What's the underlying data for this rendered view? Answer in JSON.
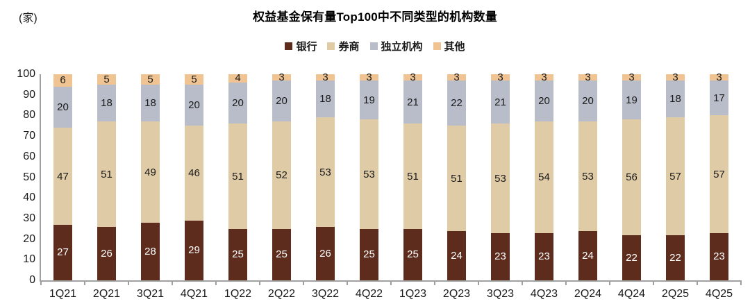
{
  "chart": {
    "unit_label": "(家)",
    "title": "权益基金保有量Top100中不同类型的机构数量",
    "colors": {
      "bank": "#5D2C1D",
      "broker": "#DFCBA6",
      "independent": "#B8BDC9",
      "other": "#F0C392",
      "axis": "#A0A0A0",
      "label_dark": "#1A1A1A",
      "label_light": "#FFFFFF"
    }
  },
  "chart_data": {
    "type": "bar",
    "stacked": true,
    "title": "权益基金保有量Top100中不同类型的机构数量",
    "unit": "(家)",
    "categories": [
      "1Q21",
      "2Q21",
      "3Q21",
      "4Q21",
      "1Q22",
      "2Q22",
      "3Q22",
      "4Q22",
      "1Q23",
      "2Q23",
      "3Q23",
      "4Q23",
      "2Q24",
      "4Q24",
      "2Q25",
      "4Q25"
    ],
    "series": [
      {
        "name": "银行",
        "key": "bank",
        "values": [
          27,
          26,
          28,
          29,
          25,
          25,
          26,
          25,
          25,
          24,
          23,
          23,
          24,
          22,
          22,
          23
        ]
      },
      {
        "name": "券商",
        "key": "broker",
        "values": [
          47,
          51,
          49,
          46,
          51,
          52,
          53,
          53,
          51,
          51,
          53,
          54,
          53,
          56,
          57,
          57
        ]
      },
      {
        "name": "独立机构",
        "key": "independent",
        "values": [
          20,
          18,
          18,
          20,
          20,
          20,
          18,
          19,
          21,
          22,
          21,
          20,
          20,
          19,
          18,
          17
        ]
      },
      {
        "name": "其他",
        "key": "other",
        "values": [
          6,
          5,
          5,
          5,
          4,
          3,
          3,
          3,
          3,
          3,
          3,
          3,
          3,
          3,
          3,
          3
        ]
      }
    ],
    "ylim": [
      0,
      100
    ],
    "yticks": [
      0,
      10,
      20,
      30,
      40,
      50,
      60,
      70,
      80,
      90,
      100
    ],
    "grid": false,
    "legend_position": "top",
    "data_labels": true
  }
}
